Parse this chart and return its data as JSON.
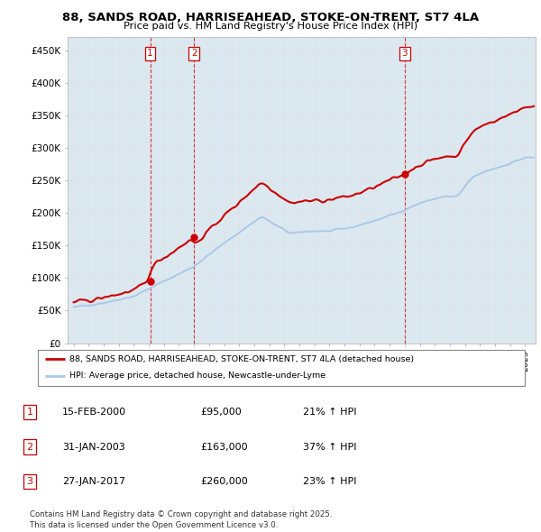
{
  "title": "88, SANDS ROAD, HARRISEAHEAD, STOKE-ON-TRENT, ST7 4LA",
  "subtitle": "Price paid vs. HM Land Registry's House Price Index (HPI)",
  "ylabel_vals": [
    "£0",
    "£50K",
    "£100K",
    "£150K",
    "£200K",
    "£250K",
    "£300K",
    "£350K",
    "£400K",
    "£450K"
  ],
  "yticks": [
    0,
    50000,
    100000,
    150000,
    200000,
    250000,
    300000,
    350000,
    400000,
    450000
  ],
  "ylim": [
    0,
    470000
  ],
  "legend_line1": "88, SANDS ROAD, HARRISEAHEAD, STOKE-ON-TRENT, ST7 4LA (detached house)",
  "legend_line2": "HPI: Average price, detached house, Newcastle-under-Lyme",
  "table_rows": [
    {
      "num": "1",
      "date": "15-FEB-2000",
      "price": "£95,000",
      "hpi": "21% ↑ HPI"
    },
    {
      "num": "2",
      "date": "31-JAN-2003",
      "price": "£163,000",
      "hpi": "37% ↑ HPI"
    },
    {
      "num": "3",
      "date": "27-JAN-2017",
      "price": "£260,000",
      "hpi": "23% ↑ HPI"
    }
  ],
  "footer": "Contains HM Land Registry data © Crown copyright and database right 2025.\nThis data is licensed under the Open Government Licence v3.0.",
  "red_color": "#cc0000",
  "blue_color": "#aac8e8",
  "grid_color": "#e0e0e0",
  "plot_bg": "#dce8f0"
}
